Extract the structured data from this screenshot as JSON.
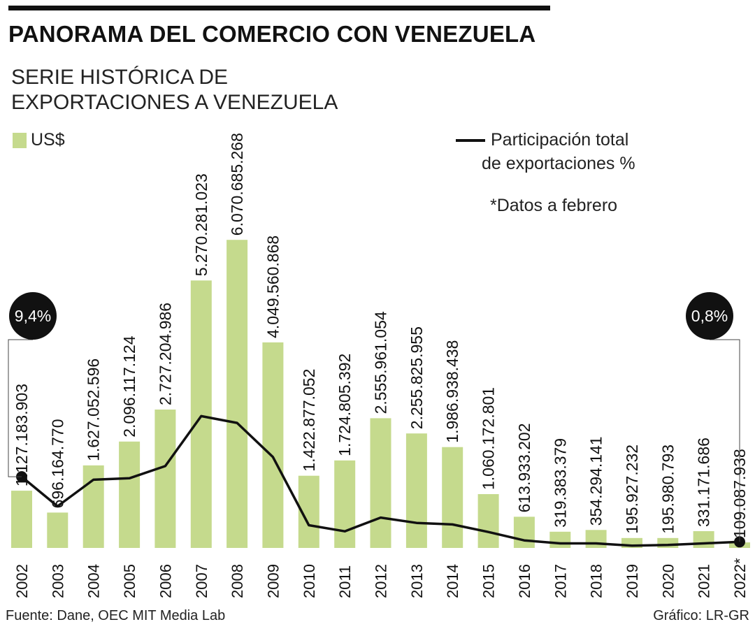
{
  "header": {
    "title": "PANORAMA DEL COMERCIO CON VENEZUELA",
    "subtitle_line1": "SERIE HISTÓRICA DE",
    "subtitle_line2": "EXPORTACIONES A VENEZUELA"
  },
  "legend": {
    "bars_label": "US$",
    "line_label_1": "Participación total",
    "line_label_2": "de exportaciones %",
    "note": "*Datos a febrero"
  },
  "footer": {
    "source": "Fuente: Dane, OEC MIT Media Lab",
    "credit": "Gráfico: LR-GR"
  },
  "colors": {
    "bar": "#c5da8d",
    "line": "#111111",
    "badge": "#111111"
  },
  "chart_data": {
    "type": "bar",
    "title": "PANORAMA DEL COMERCIO CON VENEZUELA",
    "xlabel": "",
    "ylabel": "US$",
    "ylim": [
      0,
      6500000000
    ],
    "grid": false,
    "categories": [
      "2002",
      "2003",
      "2004",
      "2005",
      "2006",
      "2007",
      "2008",
      "2009",
      "2010",
      "2011",
      "2012",
      "2013",
      "2014",
      "2015",
      "2016",
      "2017",
      "2018",
      "2019",
      "2020",
      "2021",
      "2022*"
    ],
    "series": [
      {
        "name": "US$",
        "type": "bar",
        "values": [
          1127183903,
          696164770,
          1627052596,
          2096117124,
          2727204986,
          5270281023,
          6070685268,
          4049560868,
          1422877052,
          1724805392,
          2555961054,
          2255825955,
          1986938438,
          1060172801,
          613933202,
          319383379,
          354294141,
          195927232,
          195980793,
          331171686,
          109087938
        ],
        "labels": [
          "1.127.183.903",
          "696.164.770",
          "1.627.052.596",
          "2.096.117.124",
          "2.727.204.986",
          "5.270.281.023",
          "6.070.685.268",
          "4.049.560.868",
          "1.422.877.052",
          "1.724.805.392",
          "2.555.961.054",
          "2.255.825.955",
          "1.986.938.438",
          "1.060.172.801",
          "613.933.202",
          "319.383.379",
          "354.294.141",
          "195.927.232",
          "195.980.793",
          "331.171.686",
          "109.087.938"
        ]
      },
      {
        "name": "Participación total de exportaciones %",
        "type": "line",
        "values": [
          9.4,
          5.5,
          9.0,
          9.2,
          10.8,
          17.4,
          16.5,
          12.0,
          3.0,
          2.2,
          4.0,
          3.3,
          3.1,
          2.1,
          1.0,
          0.6,
          0.6,
          0.3,
          0.4,
          0.6,
          0.8
        ],
        "ylim": [
          0,
          50
        ]
      }
    ],
    "annotations": [
      {
        "label": "9,4%",
        "category": "2002",
        "value": 9.4
      },
      {
        "label": "0,8%",
        "category": "2022*",
        "value": 0.8
      }
    ]
  }
}
